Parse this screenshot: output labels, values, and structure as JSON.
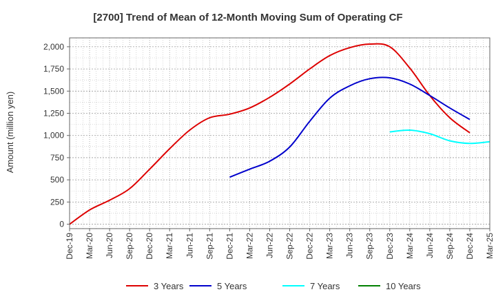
{
  "chart_data": {
    "type": "line",
    "title": "[2700]  Trend of Mean of 12-Month Moving Sum of Operating CF",
    "xlabel": "",
    "ylabel": "Amount (million yen)",
    "ylim": [
      -50,
      2100
    ],
    "yticks": [
      0,
      250,
      500,
      750,
      1000,
      1250,
      1500,
      1750,
      2000
    ],
    "ytick_labels": [
      "0",
      "250",
      "500",
      "750",
      "1,000",
      "1,250",
      "1,500",
      "1,750",
      "2,000"
    ],
    "xtick_labels": [
      "Dec-19",
      "Mar-20",
      "Jun-20",
      "Sep-20",
      "Dec-20",
      "Mar-21",
      "Jun-21",
      "Sep-21",
      "Dec-21",
      "Mar-22",
      "Jun-22",
      "Sep-22",
      "Dec-22",
      "Mar-23",
      "Jun-23",
      "Sep-23",
      "Dec-23",
      "Mar-24",
      "Jun-24",
      "Sep-24",
      "Dec-24",
      "Mar-25"
    ],
    "grid": true,
    "legend_position": "bottom",
    "series": [
      {
        "name": "3 Years",
        "color": "#dd0000",
        "start_index": 0,
        "values": [
          0,
          160,
          270,
          400,
          620,
          850,
          1060,
          1200,
          1240,
          1310,
          1430,
          1580,
          1750,
          1900,
          1990,
          2030,
          2000,
          1760,
          1450,
          1200,
          1030
        ]
      },
      {
        "name": "5 Years",
        "color": "#0000cc",
        "start_index": 8,
        "values": [
          530,
          620,
          710,
          870,
          1160,
          1420,
          1560,
          1640,
          1650,
          1580,
          1450,
          1310,
          1180
        ]
      },
      {
        "name": "7 Years",
        "color": "#00ffff",
        "start_index": 16,
        "values": [
          1040,
          1060,
          1020,
          940,
          910,
          930
        ]
      },
      {
        "name": "10 Years",
        "color": "#008000",
        "start_index": 0,
        "values": []
      }
    ]
  }
}
